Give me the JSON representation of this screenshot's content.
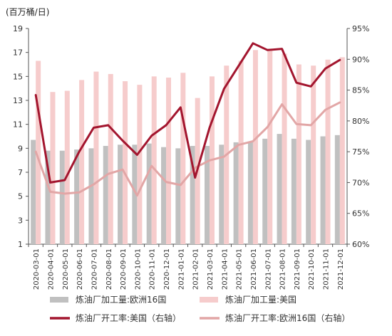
{
  "chart_data": {
    "type": "bar+line",
    "unit_label": "(百万桶/日)",
    "categories": [
      "2020-03-01",
      "2020-04-01",
      "2020-05-01",
      "2020-06-01",
      "2020-07-01",
      "2020-08-01",
      "2020-09-01",
      "2020-10-01",
      "2020-11-01",
      "2020-12-01",
      "2021-01-01",
      "2021-02-01",
      "2021-03-01",
      "2021-04-01",
      "2021-05-01",
      "2021-06-01",
      "2021-07-01",
      "2021-08-01",
      "2021-09-01",
      "2021-10-01",
      "2021-11-01",
      "2021-12-01"
    ],
    "left_axis": {
      "min": 1,
      "max": 19,
      "ticks": [
        1,
        3,
        5,
        7,
        9,
        11,
        13,
        15,
        17,
        19
      ]
    },
    "right_axis": {
      "min": 60,
      "max": 95,
      "ticks": [
        "60%",
        "65%",
        "70%",
        "75%",
        "80%",
        "85%",
        "90%",
        "95%"
      ]
    },
    "series": [
      {
        "name": "炼油厂加工量:欧洲16国",
        "type": "bar",
        "axis": "left",
        "color": "#c0c0c0",
        "values": [
          9.7,
          8.8,
          8.8,
          8.9,
          9.0,
          9.2,
          9.3,
          9.3,
          9.4,
          9.1,
          9.0,
          9.2,
          9.2,
          9.3,
          9.5,
          9.5,
          9.8,
          10.2,
          9.8,
          9.7,
          10.0,
          10.1
        ]
      },
      {
        "name": "炼油厂加工量:美国",
        "type": "bar",
        "axis": "left",
        "color": "#f6cccc",
        "values": [
          16.3,
          13.7,
          13.8,
          14.7,
          15.4,
          15.2,
          14.6,
          14.3,
          15.0,
          14.9,
          15.3,
          13.2,
          15.0,
          15.9,
          16.3,
          17.2,
          17.3,
          16.9,
          16.0,
          15.9,
          16.4,
          16.6
        ]
      },
      {
        "name": "炼油厂开工率:美国（右轴）",
        "type": "line",
        "axis": "right",
        "color": "#a3152e",
        "values": [
          84.2,
          70.0,
          70.4,
          75.0,
          78.9,
          79.3,
          76.8,
          74.5,
          77.6,
          79.3,
          82.2,
          70.8,
          78.9,
          85.2,
          88.9,
          92.6,
          91.5,
          91.7,
          86.2,
          85.6,
          88.5,
          89.9
        ]
      },
      {
        "name": "炼油厂开工率:欧洲16国（右轴）",
        "type": "line",
        "axis": "right",
        "color": "#e2a6a6",
        "values": [
          75.0,
          68.5,
          68.2,
          68.4,
          69.7,
          71.4,
          72.1,
          67.9,
          72.7,
          70.1,
          69.6,
          72.4,
          73.6,
          74.2,
          76.1,
          76.7,
          79.0,
          82.7,
          79.5,
          79.3,
          81.8,
          83.0
        ]
      }
    ]
  }
}
